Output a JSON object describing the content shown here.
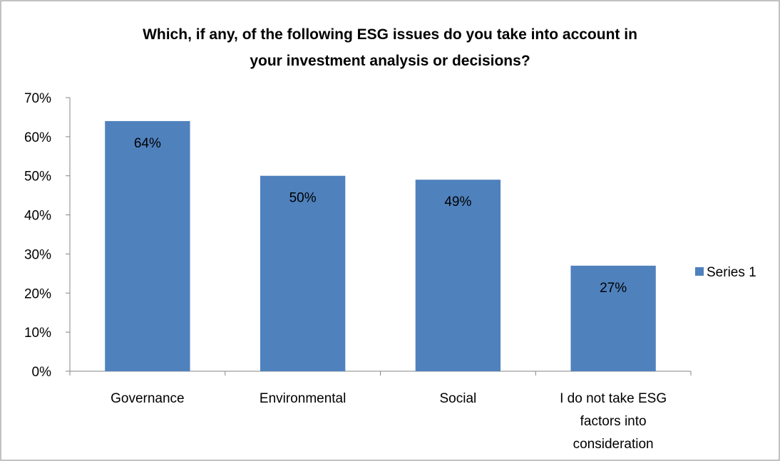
{
  "chart_data": {
    "type": "bar",
    "title_lines": [
      "Which, if any, of the following ESG issues do you take into account in",
      "your investment analysis or decisions?"
    ],
    "categories": [
      [
        "Governance"
      ],
      [
        "Environmental"
      ],
      [
        "Social"
      ],
      [
        "I do not take ESG",
        "factors into",
        "consideration"
      ]
    ],
    "series": [
      {
        "name": "Series 1",
        "values": [
          0.64,
          0.5,
          0.49,
          0.27
        ],
        "labels": [
          "64%",
          "50%",
          "49%",
          "27%"
        ],
        "color": "#4F81BD"
      }
    ],
    "yticks": [
      "0%",
      "10%",
      "20%",
      "30%",
      "40%",
      "50%",
      "60%",
      "70%"
    ],
    "ylim": [
      0,
      0.7
    ],
    "grid": false,
    "legend_position": "right",
    "border_color": "#868686",
    "axis_color": "#868686"
  }
}
